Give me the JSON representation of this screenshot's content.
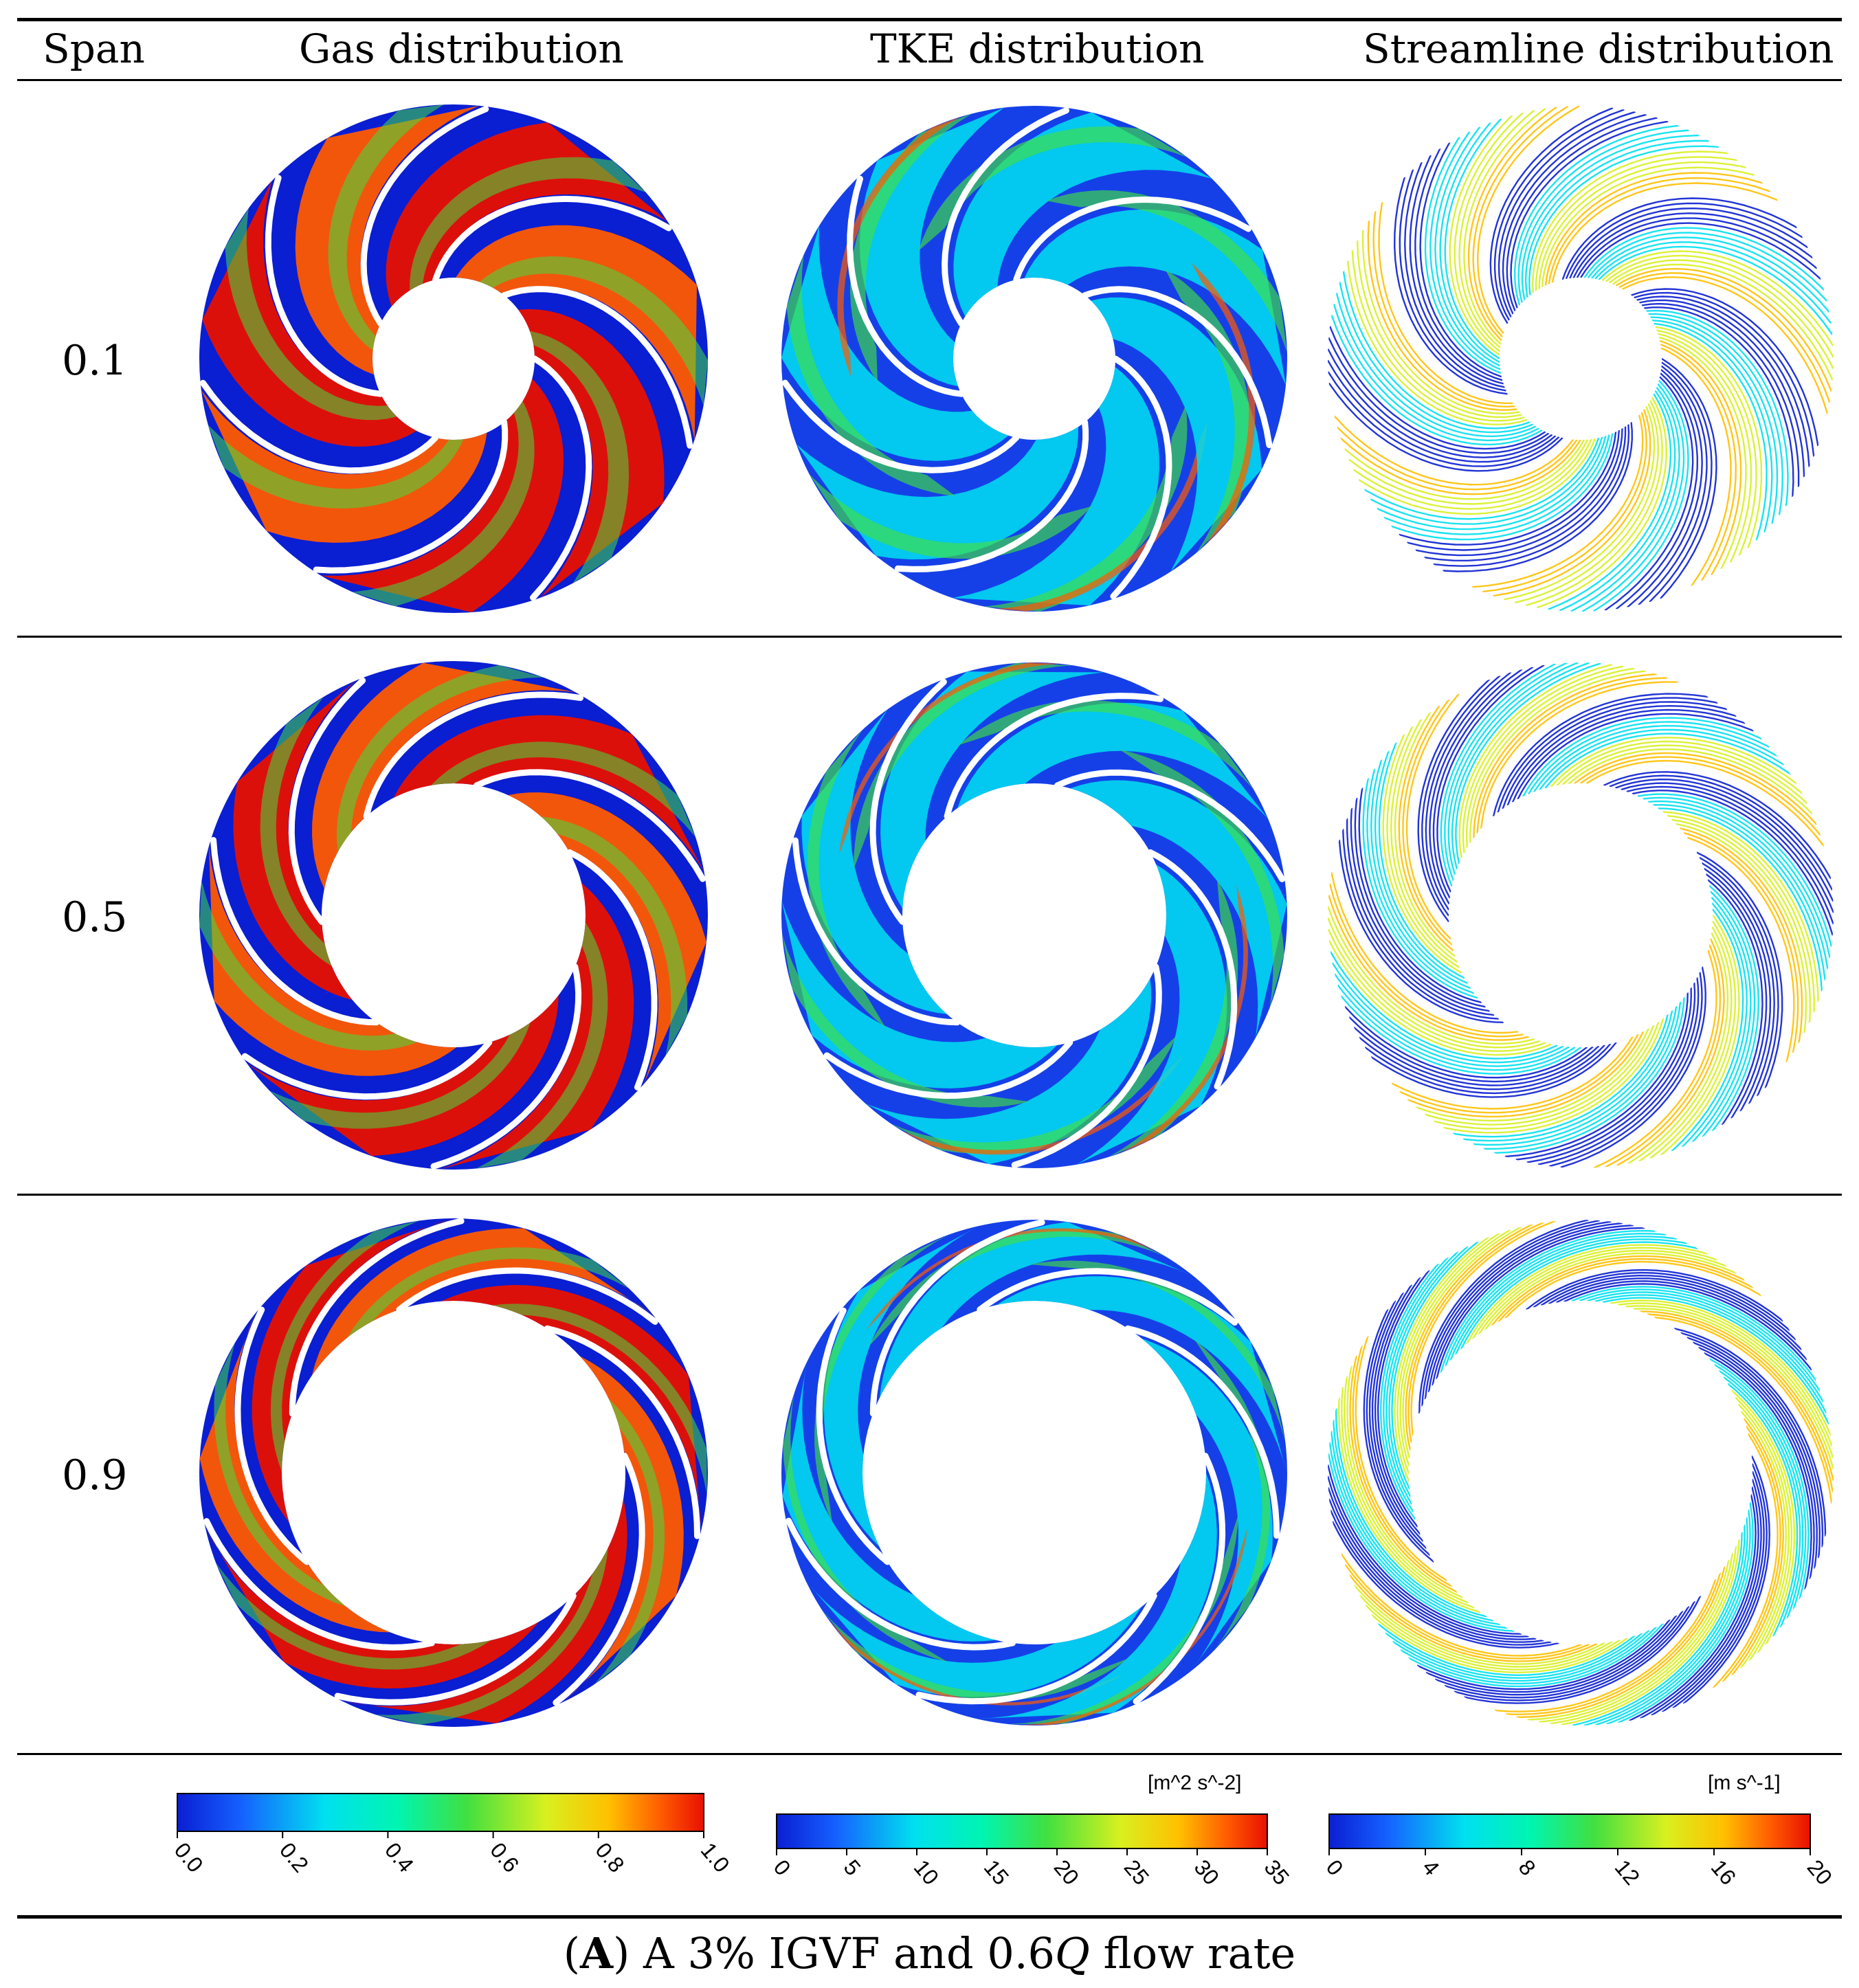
{
  "table": {
    "headers": [
      "Span",
      "Gas distribution",
      "TKE distribution",
      "Streamline distribution"
    ],
    "rows": [
      {
        "span": "0.1"
      },
      {
        "span": "0.5"
      },
      {
        "span": "0.9"
      }
    ]
  },
  "colorbars": [
    {
      "unit": "",
      "ticks": [
        "0.0",
        "0.2",
        "0.4",
        "0.6",
        "0.8",
        "1.0"
      ]
    },
    {
      "unit": "[m^2 s^-2]",
      "ticks": [
        "0",
        "5",
        "10",
        "15",
        "20",
        "25",
        "30",
        "35"
      ]
    },
    {
      "unit": "[m s^-1]",
      "ticks": [
        "0",
        "4",
        "8",
        "12",
        "16",
        "20"
      ]
    }
  ],
  "caption": {
    "label": "A",
    "text_before": " A 3% IGVF and 0.6",
    "italic": "Q",
    "text_after": " flow rate"
  },
  "colors": {
    "jet": [
      "#0a1ed2",
      "#1560ff",
      "#00e0f0",
      "#00f5b0",
      "#40e040",
      "#d8f020",
      "#ffc000",
      "#ff5a00",
      "#e81000"
    ]
  }
}
